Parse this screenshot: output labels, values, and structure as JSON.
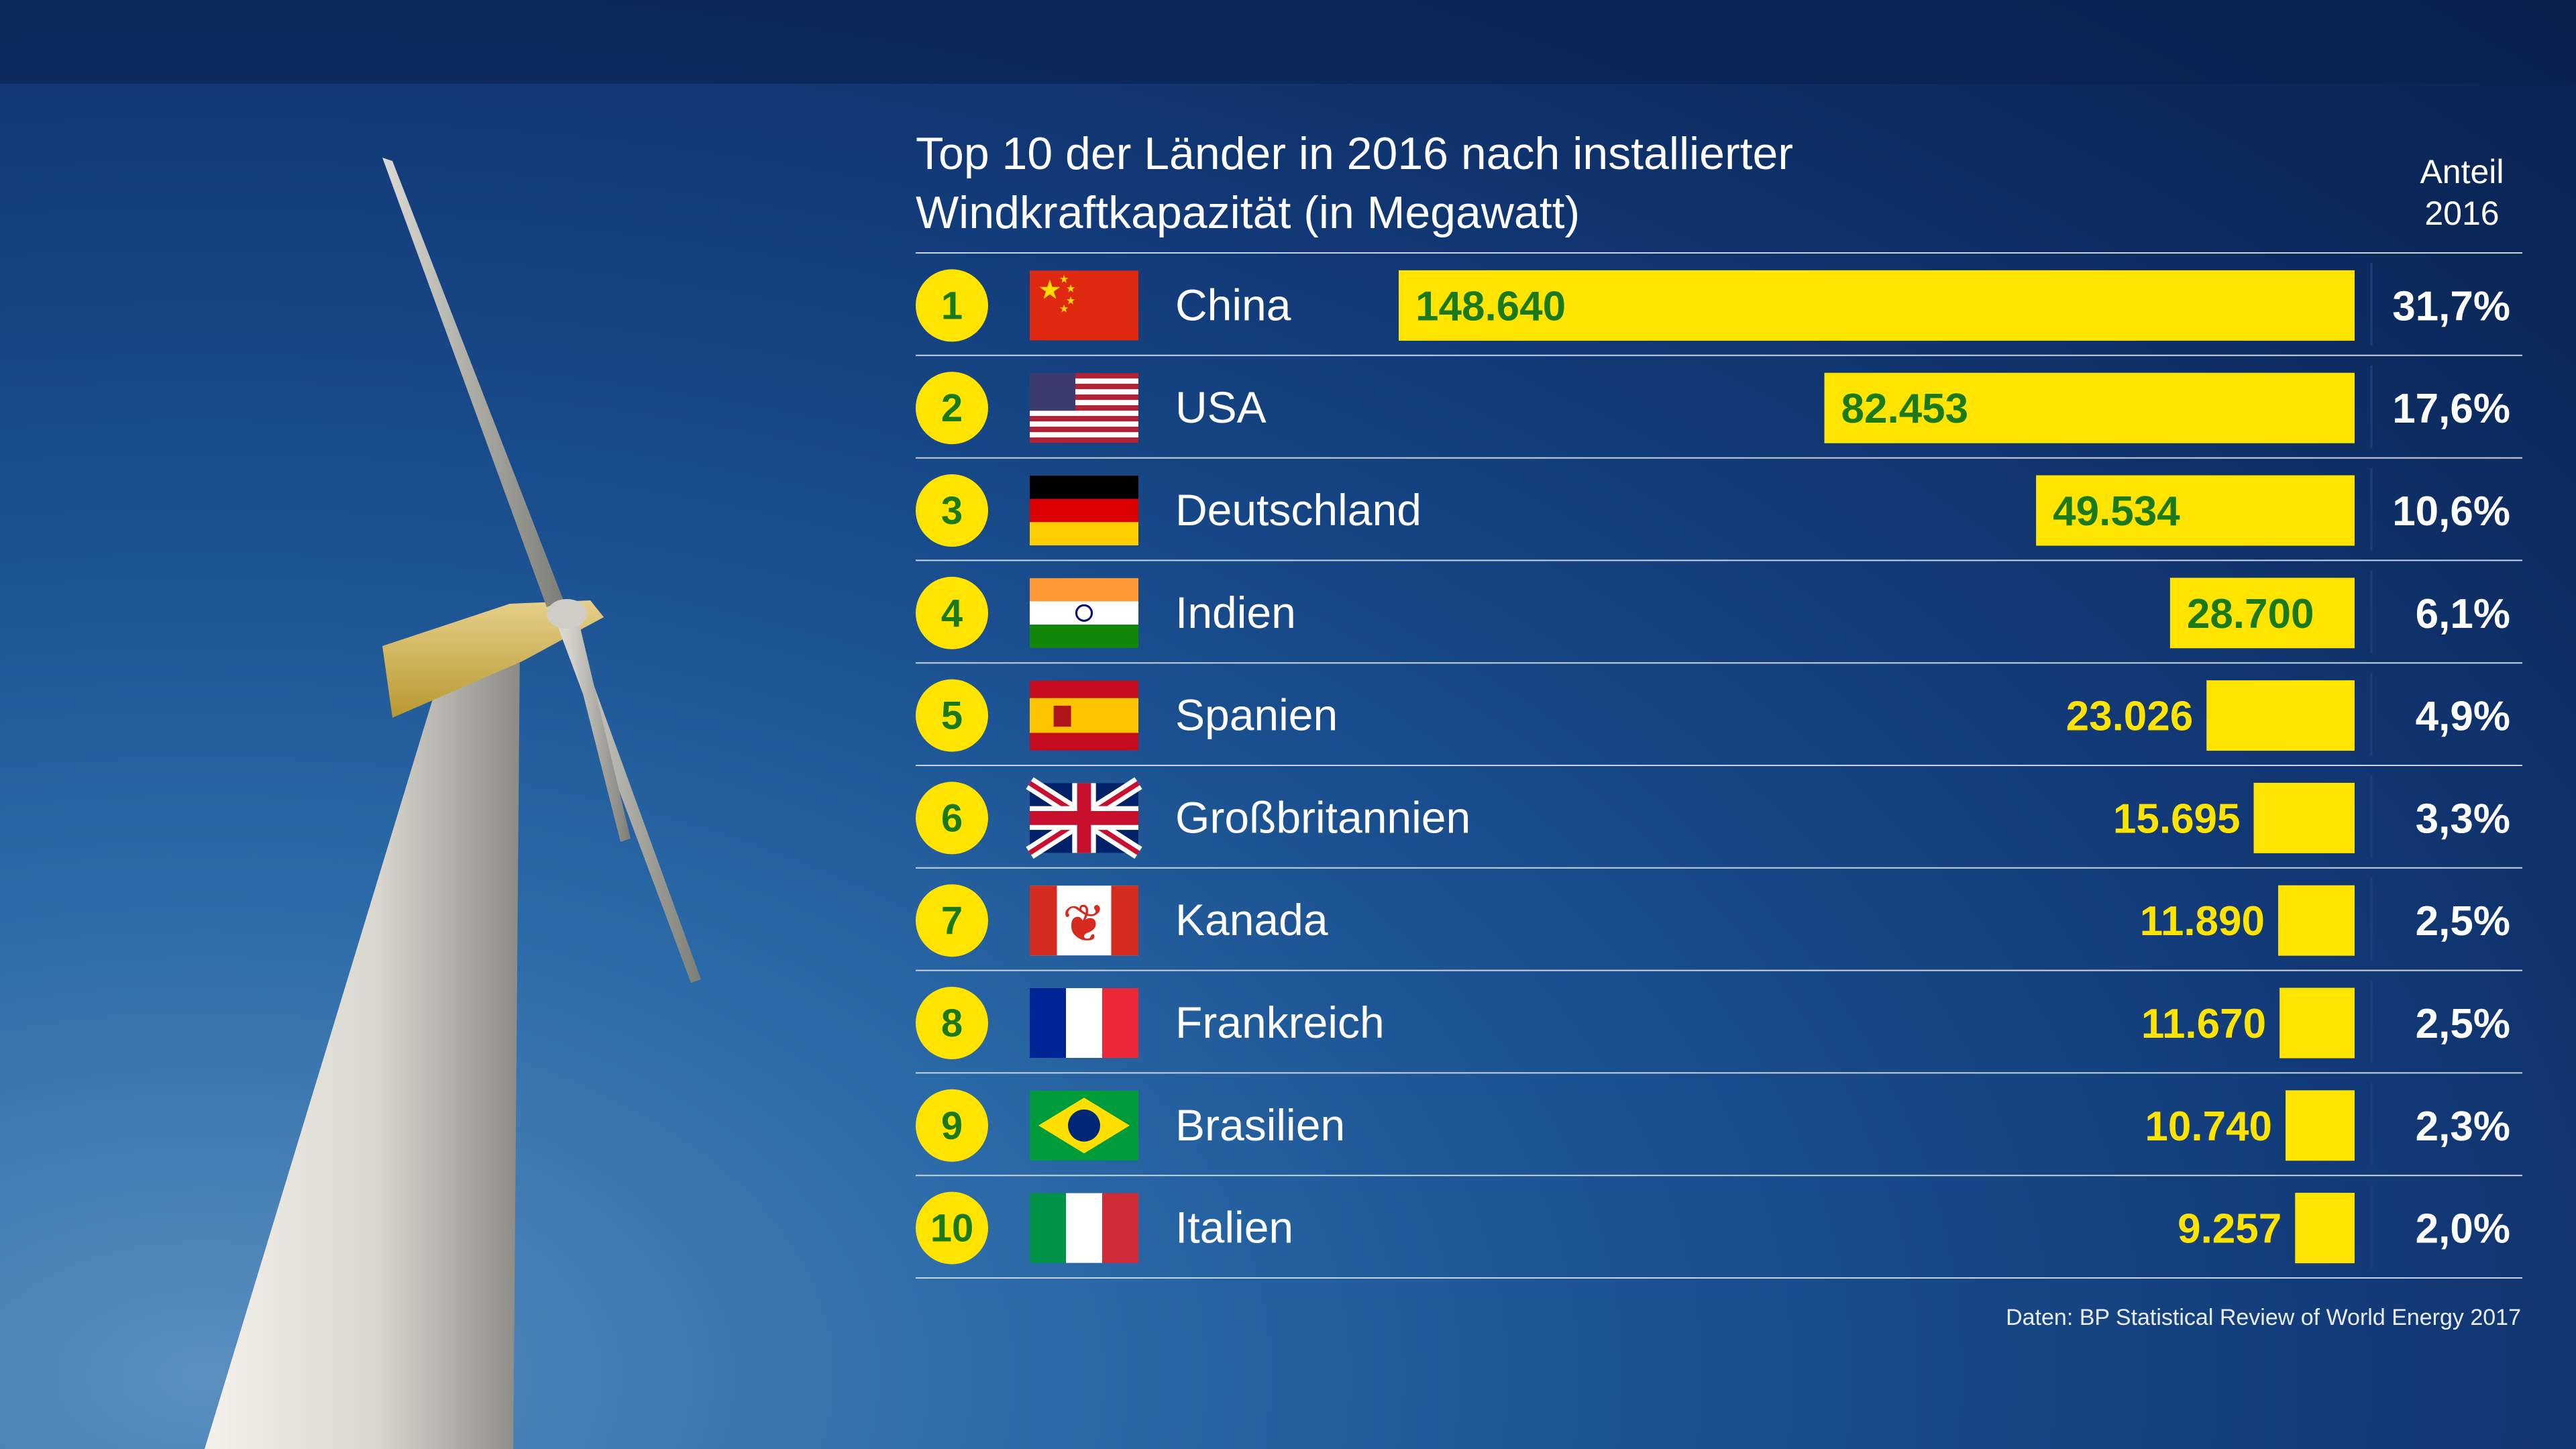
{
  "title_line1": "Top 10 der Länder in 2016 nach installierter",
  "title_line2": "Windkraftkapazität (in Megawatt)",
  "share_header_line1": "Anteil",
  "share_header_line2": "2016",
  "source": "Daten: BP Statistical Review of World Energy 2017",
  "colors": {
    "bar": "#ffe400",
    "badge": "#ffe400",
    "badge_text": "#1a7a1a",
    "value_in_bar": "#1a7a1a",
    "value_outside": "#ffe400",
    "row_line": "#c9d3e0"
  },
  "chart_data": {
    "type": "bar",
    "orientation": "horizontal",
    "title": "Top 10 der Länder in 2016 nach installierter Windkraftkapazität (in Megawatt)",
    "categories": [
      "China",
      "USA",
      "Deutschland",
      "Indien",
      "Spanien",
      "Großbritannien",
      "Kanada",
      "Frankreich",
      "Brasilien",
      "Italien"
    ],
    "ranks": [
      "1",
      "2",
      "3",
      "4",
      "5",
      "6",
      "7",
      "8",
      "9",
      "10"
    ],
    "values": [
      148640,
      82453,
      49534,
      28700,
      23026,
      15695,
      11890,
      11670,
      10740,
      9257
    ],
    "value_labels": [
      "148.640",
      "82.453",
      "49.534",
      "28.700",
      "23.026",
      "15.695",
      "11.890",
      "11.670",
      "10.740",
      "9.257"
    ],
    "shares": [
      "31,7%",
      "17,6%",
      "10,6%",
      "6,1%",
      "4,9%",
      "3,3%",
      "2,5%",
      "2,5%",
      "2,3%",
      "2,0%"
    ],
    "flags": [
      "china-flag",
      "usa-flag",
      "germany-flag",
      "india-flag",
      "spain-flag",
      "uk-flag",
      "canada-flag",
      "france-flag",
      "brazil-flag",
      "italy-flag"
    ],
    "xlim": [
      0,
      148640
    ]
  }
}
